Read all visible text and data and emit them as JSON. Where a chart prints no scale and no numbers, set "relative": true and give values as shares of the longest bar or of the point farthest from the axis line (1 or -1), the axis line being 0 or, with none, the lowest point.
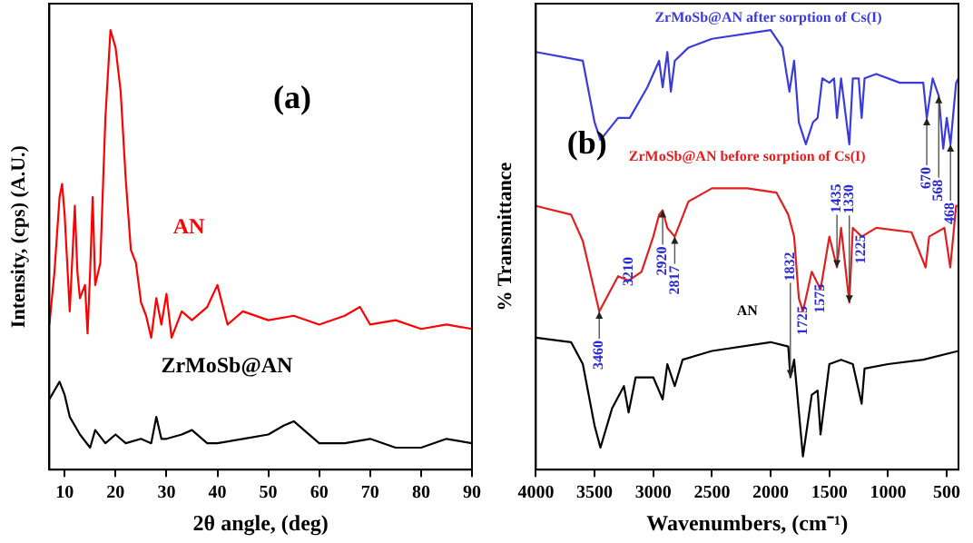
{
  "chart_data": [
    {
      "type": "line",
      "xlabel": "2θ angle, (deg)",
      "ylabel": "Intensity, (cps) (A.U.)",
      "relative": true,
      "xlim": [
        7,
        90
      ],
      "xticks": [
        10,
        20,
        30,
        40,
        50,
        60,
        70,
        80,
        90
      ],
      "tick_labels": "x",
      "legend": false,
      "grid": false,
      "marker": "none",
      "line_style": "solid",
      "annotations": [
        "(a)"
      ],
      "series": [
        {
          "name": "AN",
          "color": "#ff0000",
          "x": [
            7,
            8,
            9,
            9.5,
            10,
            11,
            12,
            12.5,
            13,
            14,
            14.5,
            15,
            15.5,
            16,
            17,
            18,
            19,
            20,
            21,
            22,
            23,
            24,
            25,
            26,
            27,
            28,
            29,
            30,
            31,
            33,
            35,
            38,
            40,
            42,
            45,
            50,
            55,
            60,
            65,
            68,
            70,
            75,
            80,
            85,
            90
          ],
          "values": [
            0.33,
            0.45,
            0.62,
            0.65,
            0.58,
            0.36,
            0.6,
            0.45,
            0.39,
            0.42,
            0.31,
            0.45,
            0.62,
            0.42,
            0.47,
            0.8,
            1.0,
            0.96,
            0.86,
            0.66,
            0.5,
            0.47,
            0.38,
            0.35,
            0.3,
            0.39,
            0.33,
            0.4,
            0.3,
            0.36,
            0.34,
            0.37,
            0.42,
            0.33,
            0.36,
            0.34,
            0.35,
            0.33,
            0.35,
            0.37,
            0.33,
            0.34,
            0.32,
            0.33,
            0.32
          ]
        },
        {
          "name": "ZrMoSb@AN",
          "color": "#000000",
          "x": [
            7,
            8,
            9,
            10,
            11,
            12,
            13,
            15,
            16,
            18,
            20,
            22,
            25,
            27,
            28,
            29,
            30,
            33,
            35,
            38,
            40,
            45,
            50,
            53,
            55,
            57,
            60,
            65,
            70,
            75,
            80,
            85,
            90
          ],
          "values": [
            0.16,
            0.18,
            0.2,
            0.17,
            0.12,
            0.1,
            0.08,
            0.05,
            0.09,
            0.06,
            0.08,
            0.06,
            0.07,
            0.06,
            0.12,
            0.07,
            0.07,
            0.08,
            0.09,
            0.06,
            0.06,
            0.07,
            0.08,
            0.1,
            0.11,
            0.09,
            0.06,
            0.06,
            0.07,
            0.05,
            0.05,
            0.07,
            0.06
          ]
        }
      ]
    },
    {
      "type": "line",
      "xlabel": "Wavenumbers, (cm⁻¹)",
      "ylabel": "% Transmittance",
      "relative": true,
      "xlim": [
        4000,
        400
      ],
      "xticks": [
        4000,
        3500,
        3000,
        2500,
        2000,
        1500,
        1000,
        500
      ],
      "tick_labels": "x",
      "legend": false,
      "grid": false,
      "marker": "none",
      "line_style": "solid",
      "annotations": [
        "(b)",
        {
          "text": "3460",
          "x": 3460,
          "y": 0.36
        },
        {
          "text": "3210",
          "x": 3210,
          "y": 0.43
        },
        {
          "text": "2920",
          "x": 2920,
          "y": 0.59
        },
        {
          "text": "2817",
          "x": 2817,
          "y": 0.53
        },
        {
          "text": "1832",
          "x": 1832,
          "y": 0.21
        },
        {
          "text": "1725",
          "x": 1725,
          "y": 0.36
        },
        {
          "text": "1575",
          "x": 1575,
          "y": 0.41
        },
        {
          "text": "1225",
          "x": 1225,
          "y": 0.53
        },
        {
          "text": "1435",
          "x": 1435,
          "y": 0.46
        },
        {
          "text": "1330",
          "x": 1330,
          "y": 0.38
        },
        {
          "text": "670",
          "x": 670,
          "y": 0.8
        },
        {
          "text": "568",
          "x": 568,
          "y": 0.85
        },
        {
          "text": "468",
          "x": 468,
          "y": 0.74
        }
      ],
      "series": [
        {
          "name": "ZrMoSb@AN after sorption of Cs(I)",
          "color": "#3b3bdc",
          "x": [
            4000,
            3600,
            3500,
            3450,
            3300,
            3200,
            3050,
            2950,
            2920,
            2880,
            2850,
            2817,
            2700,
            2500,
            2000,
            1900,
            1840,
            1800,
            1760,
            1700,
            1640,
            1600,
            1560,
            1500,
            1460,
            1435,
            1400,
            1330,
            1300,
            1250,
            1225,
            1200,
            1100,
            900,
            700,
            670,
            620,
            568,
            530,
            500,
            468,
            420,
            400
          ],
          "values": [
            0.95,
            0.93,
            0.79,
            0.75,
            0.8,
            0.8,
            0.87,
            0.93,
            0.87,
            0.95,
            0.86,
            0.93,
            0.96,
            0.98,
            1.0,
            0.96,
            0.86,
            0.93,
            0.79,
            0.74,
            0.79,
            0.8,
            0.89,
            0.88,
            0.89,
            0.8,
            0.89,
            0.74,
            0.89,
            0.89,
            0.8,
            0.89,
            0.9,
            0.88,
            0.88,
            0.8,
            0.89,
            0.85,
            0.73,
            0.8,
            0.74,
            0.88,
            0.89
          ]
        },
        {
          "name": "ZrMoSb@AN before sorption of Cs(I)",
          "color": "#e02020",
          "x": [
            4000,
            3700,
            3600,
            3460,
            3300,
            3210,
            3100,
            3000,
            2950,
            2920,
            2880,
            2817,
            2700,
            2500,
            2200,
            1950,
            1850,
            1800,
            1760,
            1725,
            1650,
            1575,
            1500,
            1435,
            1400,
            1330,
            1300,
            1225,
            1100,
            800,
            680,
            650,
            520,
            470,
            420,
            400
          ],
          "values": [
            0.6,
            0.58,
            0.52,
            0.36,
            0.44,
            0.43,
            0.45,
            0.53,
            0.58,
            0.59,
            0.55,
            0.53,
            0.61,
            0.64,
            0.64,
            0.63,
            0.58,
            0.53,
            0.39,
            0.36,
            0.45,
            0.41,
            0.53,
            0.46,
            0.55,
            0.38,
            0.55,
            0.53,
            0.55,
            0.54,
            0.46,
            0.53,
            0.55,
            0.46,
            0.6,
            0.6
          ]
        },
        {
          "name": "AN",
          "color": "#000000",
          "x": [
            4000,
            3700,
            3600,
            3500,
            3450,
            3350,
            3250,
            3210,
            3150,
            3000,
            2920,
            2880,
            2817,
            2750,
            2500,
            2000,
            1850,
            1832,
            1800,
            1725,
            1650,
            1600,
            1575,
            1500,
            1400,
            1300,
            1225,
            1200,
            1000,
            700,
            400
          ],
          "values": [
            0.3,
            0.29,
            0.24,
            0.1,
            0.05,
            0.14,
            0.19,
            0.13,
            0.21,
            0.21,
            0.16,
            0.24,
            0.19,
            0.25,
            0.27,
            0.29,
            0.28,
            0.21,
            0.25,
            0.03,
            0.17,
            0.18,
            0.08,
            0.24,
            0.25,
            0.24,
            0.15,
            0.23,
            0.24,
            0.25,
            0.27
          ]
        }
      ]
    }
  ]
}
